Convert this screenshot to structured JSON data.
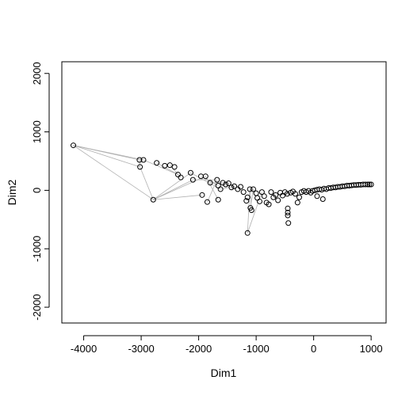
{
  "chart_data": {
    "type": "scatter",
    "xlabel": "Dim1",
    "ylabel": "Dim2",
    "xlim": [
      -4380,
      1260
    ],
    "ylim": [
      -2270,
      2200
    ],
    "x_ticks": [
      -4000,
      -3000,
      -2000,
      -1000,
      0,
      1000
    ],
    "y_ticks": [
      -2000,
      -1000,
      0,
      1000,
      2000
    ],
    "x_tick_labels": [
      "-4000",
      "-3000",
      "-2000",
      "-1000",
      "0",
      "1000"
    ],
    "y_tick_labels": [
      "-2000",
      "-1000",
      "0",
      "1000",
      "2000"
    ],
    "grid": false,
    "legend": "none",
    "point_shape": "open-circle",
    "point_color": "#000000",
    "edge_color": "#b0b0b0",
    "points": [
      {
        "x": -4180,
        "y": 770
      },
      {
        "x": -3030,
        "y": 520
      },
      {
        "x": -2960,
        "y": 520
      },
      {
        "x": -3020,
        "y": 400
      },
      {
        "x": -2730,
        "y": 470
      },
      {
        "x": -2590,
        "y": 420
      },
      {
        "x": -2500,
        "y": 430
      },
      {
        "x": -2420,
        "y": 400
      },
      {
        "x": -2360,
        "y": 270
      },
      {
        "x": -2310,
        "y": 220
      },
      {
        "x": -2140,
        "y": 300
      },
      {
        "x": -2100,
        "y": 180
      },
      {
        "x": -1960,
        "y": 240
      },
      {
        "x": -1880,
        "y": 240
      },
      {
        "x": -1940,
        "y": -80
      },
      {
        "x": -1850,
        "y": -200
      },
      {
        "x": -1800,
        "y": 130
      },
      {
        "x": -2790,
        "y": -160
      },
      {
        "x": -1680,
        "y": 180
      },
      {
        "x": -1660,
        "y": 80
      },
      {
        "x": -1620,
        "y": 20
      },
      {
        "x": -1660,
        "y": -160
      },
      {
        "x": -1580,
        "y": 130
      },
      {
        "x": -1530,
        "y": 100
      },
      {
        "x": -1480,
        "y": 120
      },
      {
        "x": -1430,
        "y": 50
      },
      {
        "x": -1380,
        "y": 70
      },
      {
        "x": -1320,
        "y": 20
      },
      {
        "x": -1270,
        "y": 60
      },
      {
        "x": -1220,
        "y": -30
      },
      {
        "x": -1170,
        "y": -180
      },
      {
        "x": -1150,
        "y": -120
      },
      {
        "x": -1110,
        "y": 20
      },
      {
        "x": -1100,
        "y": -300
      },
      {
        "x": -1080,
        "y": -340
      },
      {
        "x": -1150,
        "y": -730
      },
      {
        "x": -1050,
        "y": 20
      },
      {
        "x": -1000,
        "y": -50
      },
      {
        "x": -980,
        "y": -130
      },
      {
        "x": -940,
        "y": -190
      },
      {
        "x": -900,
        "y": -30
      },
      {
        "x": -860,
        "y": -100
      },
      {
        "x": -820,
        "y": -210
      },
      {
        "x": -780,
        "y": -240
      },
      {
        "x": -740,
        "y": -30
      },
      {
        "x": -700,
        "y": -120
      },
      {
        "x": -660,
        "y": -80
      },
      {
        "x": -620,
        "y": -170
      },
      {
        "x": -580,
        "y": -40
      },
      {
        "x": -540,
        "y": -90
      },
      {
        "x": -500,
        "y": -30
      },
      {
        "x": -460,
        "y": -60
      },
      {
        "x": -450,
        "y": -310
      },
      {
        "x": -450,
        "y": -380
      },
      {
        "x": -450,
        "y": -430
      },
      {
        "x": -440,
        "y": -560
      },
      {
        "x": -400,
        "y": -40
      },
      {
        "x": -360,
        "y": -20
      },
      {
        "x": -320,
        "y": -60
      },
      {
        "x": -280,
        "y": -210
      },
      {
        "x": -250,
        "y": -120
      },
      {
        "x": -210,
        "y": -30
      },
      {
        "x": -170,
        "y": -10
      },
      {
        "x": -130,
        "y": -30
      },
      {
        "x": -90,
        "y": -10
      },
      {
        "x": -50,
        "y": -40
      },
      {
        "x": -20,
        "y": -10
      },
      {
        "x": 20,
        "y": 0
      },
      {
        "x": 60,
        "y": -100
      },
      {
        "x": 60,
        "y": 10
      },
      {
        "x": 100,
        "y": 20
      },
      {
        "x": 140,
        "y": 10
      },
      {
        "x": 160,
        "y": -150
      },
      {
        "x": 180,
        "y": 30
      },
      {
        "x": 220,
        "y": 20
      },
      {
        "x": 260,
        "y": 40
      },
      {
        "x": 300,
        "y": 40
      },
      {
        "x": 340,
        "y": 50
      },
      {
        "x": 380,
        "y": 50
      },
      {
        "x": 420,
        "y": 60
      },
      {
        "x": 460,
        "y": 60
      },
      {
        "x": 500,
        "y": 70
      },
      {
        "x": 540,
        "y": 70
      },
      {
        "x": 580,
        "y": 80
      },
      {
        "x": 620,
        "y": 80
      },
      {
        "x": 660,
        "y": 85
      },
      {
        "x": 700,
        "y": 90
      },
      {
        "x": 740,
        "y": 90
      },
      {
        "x": 780,
        "y": 95
      },
      {
        "x": 820,
        "y": 95
      },
      {
        "x": 860,
        "y": 100
      },
      {
        "x": 900,
        "y": 100
      },
      {
        "x": 940,
        "y": 100
      },
      {
        "x": 970,
        "y": 100
      },
      {
        "x": 1000,
        "y": 100
      }
    ],
    "edges": [
      [
        0,
        1
      ],
      [
        0,
        2
      ],
      [
        0,
        3
      ],
      [
        0,
        17
      ],
      [
        1,
        3
      ],
      [
        3,
        17
      ],
      [
        17,
        10
      ],
      [
        17,
        11
      ],
      [
        17,
        14
      ],
      [
        17,
        13
      ],
      [
        4,
        8
      ],
      [
        6,
        9
      ],
      [
        10,
        20
      ],
      [
        11,
        18
      ],
      [
        12,
        19
      ],
      [
        13,
        21
      ],
      [
        16,
        22
      ],
      [
        2,
        8
      ],
      [
        15,
        18
      ],
      [
        20,
        26
      ],
      [
        32,
        34
      ],
      [
        32,
        35
      ],
      [
        33,
        36
      ],
      [
        35,
        40
      ]
    ]
  }
}
